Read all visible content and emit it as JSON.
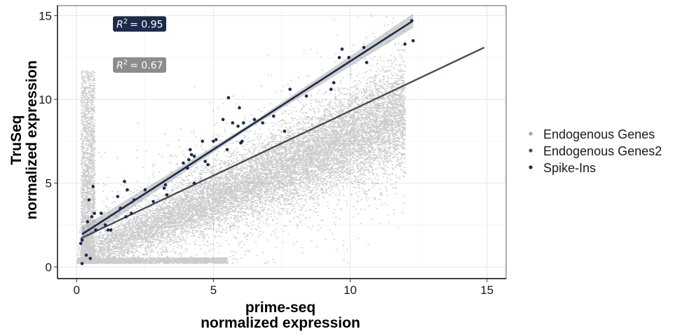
{
  "chart_data": {
    "type": "scatter",
    "xlabel": [
      "prime-seq",
      "normalized expression"
    ],
    "ylabel": [
      "TruSeq",
      "normalized expression"
    ],
    "xlim": [
      -0.7,
      15.7
    ],
    "ylim": [
      -0.7,
      15.6
    ],
    "xticks": [
      0,
      5,
      10,
      15
    ],
    "yticks": [
      0,
      5,
      10,
      15
    ],
    "grid": true,
    "legend_position": "right",
    "series": [
      {
        "name": "Endogenous Genes",
        "color": "#a3a3a3",
        "kind": "dense point cloud (tens of thousands of points)"
      },
      {
        "name": "Endogenous Genes2",
        "color": "#484d57",
        "kind": "regression line",
        "line": {
          "x": [
            0.15,
            14.9
          ],
          "y": [
            1.7,
            13.1
          ]
        }
      },
      {
        "name": "Spike-Ins",
        "color": "#1c2a4c",
        "kind": "points + regression line with CI band",
        "line": {
          "x": [
            0.2,
            12.3
          ],
          "y": [
            1.95,
            14.7
          ]
        },
        "points": [
          [
            0.15,
            1.4
          ],
          [
            0.2,
            1.6
          ],
          [
            0.2,
            0.2
          ],
          [
            0.35,
            0.7
          ],
          [
            0.4,
            2.7
          ],
          [
            0.45,
            4.0
          ],
          [
            0.5,
            0.5
          ],
          [
            0.55,
            3.0
          ],
          [
            0.6,
            4.8
          ],
          [
            0.65,
            3.2
          ],
          [
            0.7,
            2.2
          ],
          [
            0.9,
            3.2
          ],
          [
            1.05,
            2.5
          ],
          [
            1.15,
            2.2
          ],
          [
            1.25,
            2.2
          ],
          [
            1.5,
            4.2
          ],
          [
            1.6,
            3.5
          ],
          [
            1.75,
            5.1
          ],
          [
            1.8,
            3.0
          ],
          [
            1.85,
            4.6
          ],
          [
            2.0,
            3.2
          ],
          [
            2.1,
            4.0
          ],
          [
            2.5,
            4.6
          ],
          [
            2.8,
            3.9
          ],
          [
            3.2,
            4.7
          ],
          [
            3.25,
            4.9
          ],
          [
            3.3,
            4.3
          ],
          [
            3.9,
            6.2
          ],
          [
            4.05,
            5.9
          ],
          [
            4.1,
            6.4
          ],
          [
            4.15,
            7.0
          ],
          [
            4.2,
            6.7
          ],
          [
            4.3,
            6.6
          ],
          [
            4.3,
            5.0
          ],
          [
            4.6,
            7.5
          ],
          [
            4.7,
            6.3
          ],
          [
            4.8,
            6.1
          ],
          [
            5.0,
            7.5
          ],
          [
            5.1,
            7.6
          ],
          [
            5.35,
            8.8
          ],
          [
            5.5,
            7.0
          ],
          [
            5.55,
            10.1
          ],
          [
            5.7,
            8.6
          ],
          [
            5.9,
            8.4
          ],
          [
            5.95,
            9.5
          ],
          [
            6.0,
            7.4
          ],
          [
            6.05,
            7.5
          ],
          [
            6.1,
            8.6
          ],
          [
            6.5,
            8.8
          ],
          [
            6.8,
            8.6
          ],
          [
            7.2,
            9.0
          ],
          [
            7.6,
            8.1
          ],
          [
            7.8,
            10.6
          ],
          [
            8.4,
            10.2
          ],
          [
            9.3,
            10.6
          ],
          [
            9.4,
            11.0
          ],
          [
            9.6,
            12.5
          ],
          [
            9.7,
            13.0
          ],
          [
            9.95,
            12.5
          ],
          [
            10.5,
            13.1
          ],
          [
            10.6,
            12.2
          ],
          [
            12.0,
            13.3
          ],
          [
            12.25,
            14.7
          ],
          [
            12.3,
            13.5
          ]
        ]
      }
    ],
    "annotations": [
      {
        "label": "R",
        "sup": "2",
        "value": "=  0.95",
        "x": 2.3,
        "y": 14.5,
        "color": "#1c2a4c"
      },
      {
        "label": "R",
        "sup": "2",
        "value": "=  0.67",
        "x": 2.3,
        "y": 12.05,
        "color": "#8c8c8c"
      }
    ]
  }
}
